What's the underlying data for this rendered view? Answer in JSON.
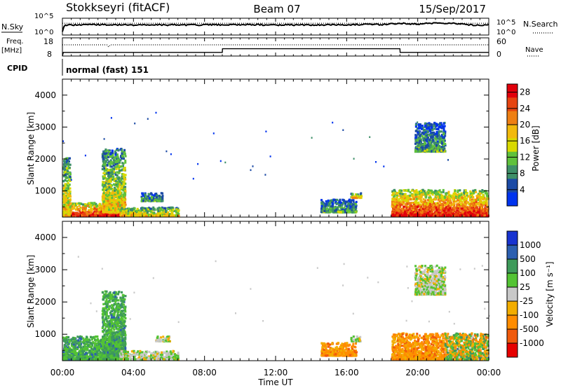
{
  "header": {
    "station": "Stokkseyri (fitACF)",
    "beam": "Beam 07",
    "date": "15/Sep/2017"
  },
  "left_labels": {
    "nsky": "N.Sky",
    "freq_top": "Freq.",
    "freq_unit": "[MHz]",
    "cpid": "CPID"
  },
  "right_labels": {
    "nsearch": "N.Search",
    "nave": "Nave"
  },
  "cpid_text": "normal (fast) 151",
  "x_ticks": [
    "00:00",
    "04:00",
    "08:00",
    "12:00",
    "16:00",
    "20:00",
    "00:00"
  ],
  "x_title": "Time UT",
  "noise_ticks": [
    "10^5",
    "10^0"
  ],
  "freq_ticks": [
    "18",
    "8"
  ],
  "nave_ticks": [
    "60",
    "0"
  ],
  "range_ticks": [
    "1000",
    "2000",
    "3000",
    "4000"
  ],
  "range_title": "Slant Range [km]",
  "colors": {
    "power": [
      "#0033ee",
      "#1b4aa5",
      "#3e8f68",
      "#5fc13c",
      "#d9d900",
      "#f2b90c",
      "#ee7f13",
      "#e64410",
      "#e1000b"
    ],
    "velocity": [
      "#e60000",
      "#f05a0c",
      "#ff8c00",
      "#f2ad00",
      "#c8c8c8",
      "#53c333",
      "#3e9a5a",
      "#2c5fb0",
      "#1833d0"
    ]
  },
  "chart_data": [
    {
      "type": "line",
      "title": "N.Sky / N.Search",
      "x_range_hours": [
        0,
        24
      ],
      "y_scale": "log",
      "ylim": [
        "10^0",
        "10^5"
      ],
      "series": [
        {
          "name": "N.Sky",
          "style": "solid",
          "x": [
            0,
            0.1,
            0.2,
            2,
            4,
            6,
            8,
            10,
            12,
            14,
            16,
            18,
            19,
            20,
            21,
            22,
            23,
            24
          ],
          "y_level": [
            0.2,
            0.55,
            0.6,
            0.62,
            0.6,
            0.6,
            0.6,
            0.62,
            0.6,
            0.6,
            0.62,
            0.62,
            0.7,
            0.65,
            0.72,
            0.7,
            0.6,
            0.6
          ]
        },
        {
          "name": "N.Search",
          "style": "dotted",
          "x": [
            0,
            24
          ],
          "y_level": [
            0.7,
            0.7
          ]
        }
      ]
    },
    {
      "type": "line",
      "title": "Freq. [MHz] / Nave",
      "x_range_hours": [
        0,
        24
      ],
      "ylim_freq": [
        8,
        18
      ],
      "ylim_nave": [
        0,
        60
      ],
      "series": [
        {
          "name": "Freq. [MHz]",
          "style": "solid",
          "x": [
            0,
            0.05,
            9,
            9.01,
            19,
            19.01,
            24
          ],
          "y": [
            8,
            10,
            10,
            12,
            12,
            10,
            10
          ]
        },
        {
          "name": "Nave",
          "style": "dotted",
          "x": [
            0,
            2.5,
            2.6,
            2.7,
            24
          ],
          "y": [
            37,
            37,
            30,
            37,
            37
          ]
        }
      ]
    },
    {
      "type": "heatmap",
      "quantity": "Power",
      "colorbar_label": "Power [dB]",
      "colorbar_ticks": [
        "4",
        "8",
        "12",
        "16",
        "20",
        "24",
        "28"
      ],
      "colorbar_range": [
        0,
        30
      ],
      "x_range_hours": [
        0,
        24
      ],
      "y_range_km": [
        180,
        4500
      ],
      "ylabel": "Slant Range [km]",
      "xlabel": "Time UT",
      "clusters": [
        {
          "t": [
            0.0,
            3.2
          ],
          "r": [
            180,
            600
          ],
          "level": "high"
        },
        {
          "t": [
            0.0,
            0.4
          ],
          "r": [
            180,
            2000
          ],
          "level": "mid"
        },
        {
          "t": [
            2.2,
            3.5
          ],
          "r": [
            300,
            2300
          ],
          "level": "mid"
        },
        {
          "t": [
            3.2,
            6.5
          ],
          "r": [
            180,
            450
          ],
          "level": "mid"
        },
        {
          "t": [
            4.4,
            5.6
          ],
          "r": [
            650,
            900
          ],
          "level": "low"
        },
        {
          "t": [
            14.5,
            16.5
          ],
          "r": [
            300,
            700
          ],
          "level": "low"
        },
        {
          "t": [
            16.2,
            16.8
          ],
          "r": [
            750,
            900
          ],
          "level": "mid"
        },
        {
          "t": [
            18.5,
            24.0
          ],
          "r": [
            180,
            1000
          ],
          "level": "high"
        },
        {
          "t": [
            19.8,
            21.5
          ],
          "r": [
            2200,
            3100
          ],
          "level": "low"
        }
      ]
    },
    {
      "type": "heatmap",
      "quantity": "Velocity",
      "colorbar_label": "Velocity [m s⁻¹]",
      "colorbar_ticks": [
        "1000",
        "500",
        "100",
        "25",
        "-25",
        "-100",
        "-500",
        "-1000"
      ],
      "colorbar_range": [
        -1000,
        1000
      ],
      "x_range_hours": [
        0,
        24
      ],
      "y_range_km": [
        180,
        4500
      ],
      "ylabel": "Slant Range [km]",
      "xlabel": "Time UT",
      "clusters": [
        {
          "t": [
            0.0,
            3.2
          ],
          "r": [
            180,
            900
          ],
          "level": "positive"
        },
        {
          "t": [
            2.2,
            3.5
          ],
          "r": [
            300,
            2300
          ],
          "level": "positive"
        },
        {
          "t": [
            3.2,
            6.5
          ],
          "r": [
            180,
            450
          ],
          "level": "near-zero"
        },
        {
          "t": [
            5.2,
            6.0
          ],
          "r": [
            750,
            900
          ],
          "level": "near-zero"
        },
        {
          "t": [
            14.5,
            16.5
          ],
          "r": [
            300,
            700
          ],
          "level": "negative"
        },
        {
          "t": [
            16.2,
            16.8
          ],
          "r": [
            750,
            900
          ],
          "level": "near-zero"
        },
        {
          "t": [
            18.5,
            21.5
          ],
          "r": [
            180,
            1000
          ],
          "level": "negative"
        },
        {
          "t": [
            21.5,
            24.0
          ],
          "r": [
            180,
            1000
          ],
          "level": "mixed"
        },
        {
          "t": [
            19.8,
            21.5
          ],
          "r": [
            2200,
            3100
          ],
          "level": "near-zero"
        }
      ]
    }
  ]
}
